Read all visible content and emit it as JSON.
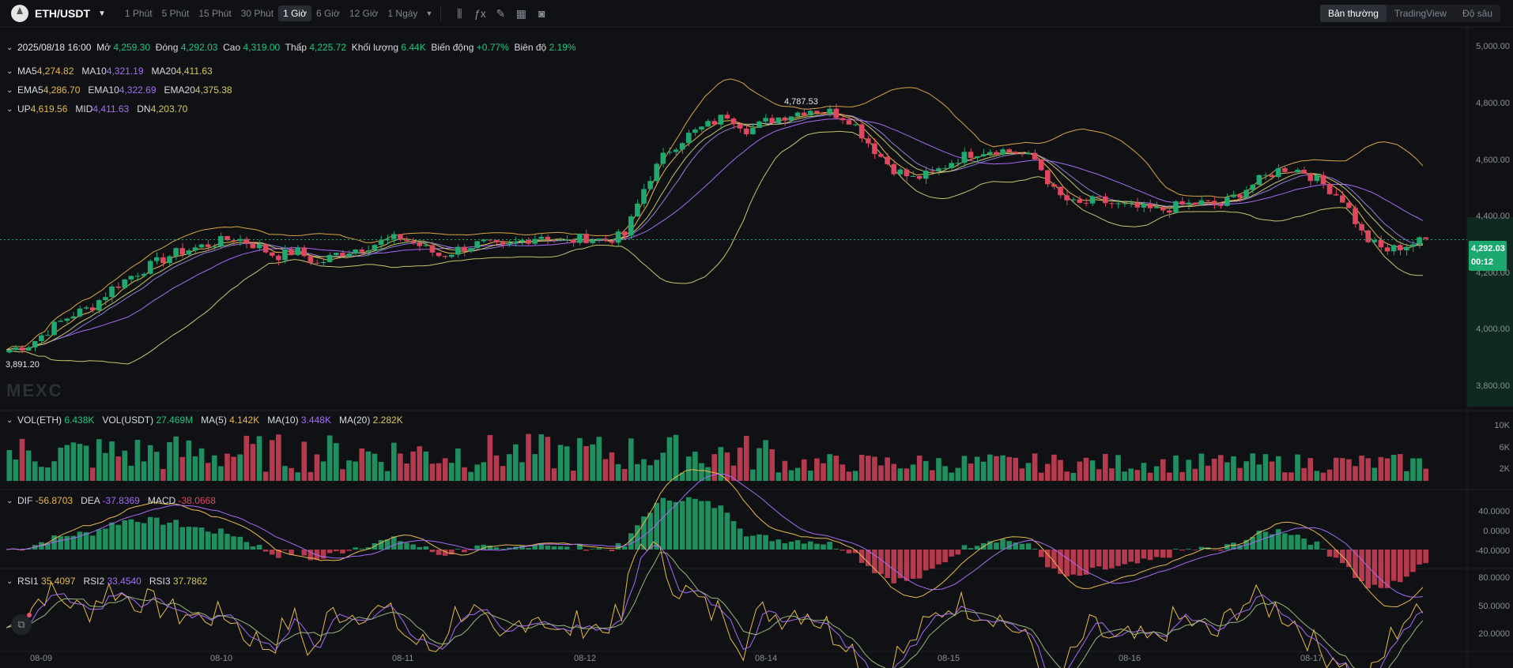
{
  "topbar": {
    "pair": "ETH/USDT",
    "timeframes": [
      "1 Phút",
      "5 Phút",
      "15 Phút",
      "30 Phút",
      "1 Giờ",
      "6 Giờ",
      "12 Giờ",
      "1 Ngày"
    ],
    "active_timeframe": "1 Giờ",
    "tools": [
      "candle-type-icon",
      "indicator-icon",
      "draw-icon",
      "layout-icon",
      "camera-icon"
    ],
    "views": [
      "Bản thường",
      "TradingView",
      "Độ sâu"
    ],
    "active_view": "Bản thường"
  },
  "ohlc": {
    "date": "2025/08/18 16:00",
    "open_label": "Mở",
    "open": "4,259.30",
    "close_label": "Đóng",
    "close": "4,292.03",
    "high_label": "Cao",
    "high": "4,319.00",
    "low_label": "Thấp",
    "low": "4,225.72",
    "vol_label": "Khối lượng",
    "vol": "6.44K",
    "change_label": "Biến động",
    "change": "+0.77%",
    "amp_label": "Biên độ",
    "amp": "2.19%"
  },
  "ma": {
    "ma5_label": "MA5",
    "ma5": "4,274.82",
    "ma10_label": "MA10",
    "ma10": "4,321.19",
    "ma20_label": "MA20",
    "ma20": "4,411.63"
  },
  "ema": {
    "ema5_label": "EMA5",
    "ema5": "4,286.70",
    "ema10_label": "EMA10",
    "ema10": "4,322.69",
    "ema20_label": "EMA20",
    "ema20": "4,375.38"
  },
  "boll": {
    "up_label": "UP",
    "up": "4,619.56",
    "mid_label": "MID",
    "mid": "4,411.63",
    "dn_label": "DN",
    "dn": "4,203.70"
  },
  "volume": {
    "eth_label": "VOL(ETH)",
    "eth": "6.438K",
    "usdt_label": "VOL(USDT)",
    "usdt": "27.469M",
    "ma5_label": "MA(5)",
    "ma5": "4.142K",
    "ma10_label": "MA(10)",
    "ma10": "3.448K",
    "ma20_label": "MA(20)",
    "ma20": "2.282K"
  },
  "macd": {
    "dif_label": "DIF",
    "dif": "-56.8703",
    "dea_label": "DEA",
    "dea": "-37.8369",
    "macd_label": "MACD",
    "macd": "-38.0668"
  },
  "rsi": {
    "rsi1_label": "RSI1",
    "rsi1": "35.4097",
    "rsi2_label": "RSI2",
    "rsi2": "33.4540",
    "rsi3_label": "RSI3",
    "rsi3": "37.7862"
  },
  "price_axis": [
    "5,000.00",
    "4,800.00",
    "4,600.00",
    "4,400.00",
    "4,200.00",
    "4,000.00",
    "3,800.00"
  ],
  "volume_axis": [
    "10K",
    "6K",
    "2K"
  ],
  "macd_axis": [
    "40.0000",
    "0.0000",
    "-40.0000"
  ],
  "rsi_axis": [
    "80.0000",
    "50.0000",
    "20.0000"
  ],
  "last_price": "4,292.03",
  "countdown": "00:12",
  "high_marker": "4,787.53",
  "low_marker": "3,891.20",
  "watermark": "MEXC",
  "x_axis": [
    "08-09",
    "08-10",
    "08-11",
    "08-12",
    "08-14",
    "08-15",
    "08-16",
    "08-17"
  ],
  "colors": {
    "up": "#1fa971",
    "down": "#e0465e",
    "bg": "#101115"
  },
  "chart_data": {
    "type": "candlestick",
    "close_path": [
      3880,
      3900,
      3960,
      4010,
      4040,
      4110,
      4160,
      4200,
      4240,
      4260,
      4280,
      4300,
      4270,
      4230,
      4250,
      4200,
      4240,
      4260,
      4280,
      4300,
      4270,
      4230,
      4260,
      4280,
      4260,
      4290,
      4310,
      4280,
      4300,
      4290,
      4310,
      4500,
      4620,
      4680,
      4720,
      4760,
      4700,
      4740,
      4760,
      4780,
      4770,
      4740,
      4640,
      4560,
      4520,
      4540,
      4590,
      4620,
      4630,
      4620,
      4590,
      4460,
      4420,
      4440,
      4420,
      4410,
      4400,
      4420,
      4430,
      4420,
      4470,
      4520,
      4560,
      4550,
      4500,
      4440,
      4300,
      4250,
      4270,
      4292
    ],
    "price_range": [
      3750,
      5050
    ]
  }
}
